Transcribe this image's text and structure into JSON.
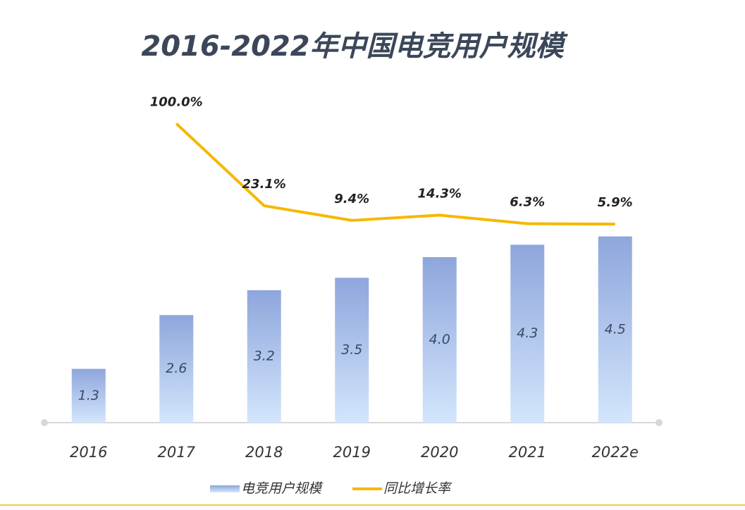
{
  "chart_data": {
    "type": "bar",
    "title": "2016-2022年中国电竞用户规模",
    "categories": [
      "2016",
      "2017",
      "2018",
      "2019",
      "2020",
      "2021",
      "2022e"
    ],
    "series": [
      {
        "name": "电竞用户规模",
        "color": "#8ea6dc",
        "values": [
          1.3,
          2.6,
          3.2,
          3.5,
          4.0,
          4.3,
          4.5
        ],
        "value_labels": [
          "1.3",
          "2.6",
          "3.2",
          "3.5",
          "4.0",
          "4.3",
          "4.5"
        ]
      },
      {
        "name": "同比增长率",
        "color": "#f5b800",
        "axis": "y2",
        "values": [
          null,
          100.0,
          23.1,
          9.4,
          14.3,
          6.3,
          5.9
        ],
        "value_labels": [
          null,
          "100.0%",
          "23.1%",
          "9.4%",
          "14.3%",
          "6.3%",
          "5.9%"
        ]
      }
    ],
    "ylim": [
      0,
      8
    ],
    "y2lim": [
      -180,
      130
    ],
    "grid": false,
    "legend": "bottom"
  }
}
